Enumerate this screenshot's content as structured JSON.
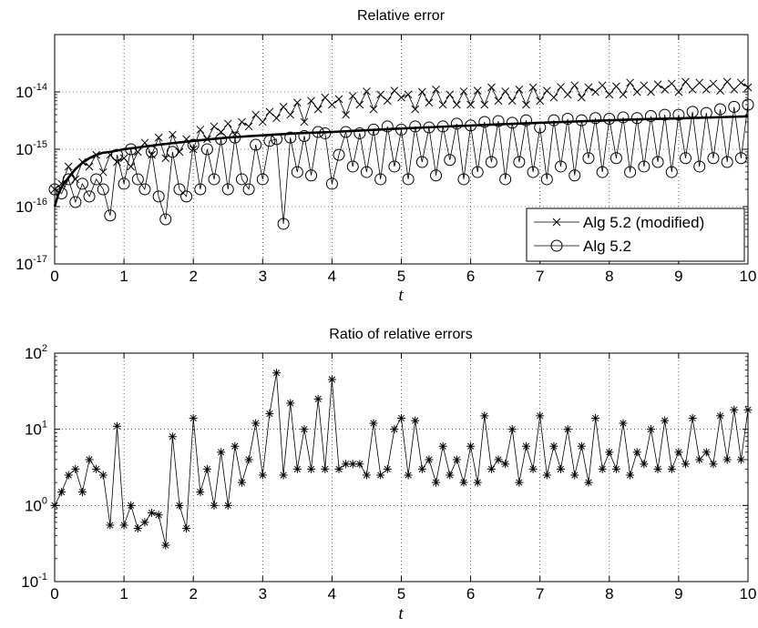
{
  "chart_data": [
    {
      "type": "line",
      "title": "Relative error",
      "xlabel": "t",
      "ylabel": "",
      "xlim": [
        0,
        10
      ],
      "ylim": [
        1e-17,
        1e-13
      ],
      "yscale": "log",
      "grid": true,
      "legend_position": "bottom-right",
      "x_ticks": [
        "0",
        "1",
        "2",
        "3",
        "4",
        "5",
        "6",
        "7",
        "8",
        "9",
        "10"
      ],
      "y_tick_exponents": [
        "-17",
        "-16",
        "-15",
        "-14"
      ],
      "y_tick_base": "10",
      "series": [
        {
          "name": "Alg 5.2 (modified)",
          "marker": "x",
          "x": [
            0.0,
            0.1,
            0.2,
            0.3,
            0.4,
            0.5,
            0.6,
            0.7,
            0.8,
            0.9,
            1.0,
            1.1,
            1.2,
            1.3,
            1.4,
            1.5,
            1.6,
            1.7,
            1.8,
            1.9,
            2.0,
            2.1,
            2.2,
            2.3,
            2.4,
            2.5,
            2.6,
            2.7,
            2.8,
            2.9,
            3.0,
            3.1,
            3.2,
            3.3,
            3.4,
            3.5,
            3.6,
            3.7,
            3.8,
            3.9,
            4.0,
            4.1,
            4.2,
            4.3,
            4.4,
            4.5,
            4.6,
            4.7,
            4.8,
            4.9,
            5.0,
            5.1,
            5.2,
            5.3,
            5.4,
            5.5,
            5.6,
            5.7,
            5.8,
            5.9,
            6.0,
            6.1,
            6.2,
            6.3,
            6.4,
            6.5,
            6.6,
            6.7,
            6.8,
            6.9,
            7.0,
            7.1,
            7.2,
            7.3,
            7.4,
            7.5,
            7.6,
            7.7,
            7.8,
            7.9,
            8.0,
            8.1,
            8.2,
            8.3,
            8.4,
            8.5,
            8.6,
            8.7,
            8.8,
            8.9,
            9.0,
            9.1,
            9.2,
            9.3,
            9.4,
            9.5,
            9.6,
            9.7,
            9.8,
            9.9,
            10.0
          ],
          "y": [
            2e-16,
            2.5e-16,
            5e-16,
            3e-16,
            6e-16,
            5e-16,
            8e-16,
            4e-16,
            8e-16,
            6e-16,
            7e-16,
            5e-16,
            9e-16,
            1.3e-15,
            8e-16,
            1.6e-15,
            7e-16,
            1.8e-15,
            9e-16,
            1.5e-15,
            1e-15,
            2.2e-15,
            1.5e-15,
            2.5e-15,
            2e-15,
            2.8e-15,
            1.8e-15,
            3e-15,
            2.5e-15,
            4e-15,
            3e-15,
            4.5e-15,
            3.5e-15,
            5.5e-15,
            4e-15,
            6.5e-15,
            3e-15,
            7e-15,
            5e-15,
            8e-15,
            6e-15,
            7.5e-15,
            4e-15,
            8.5e-15,
            6e-15,
            1.02e-14,
            5e-15,
            9e-15,
            7e-15,
            1.05e-14,
            8e-15,
            9e-15,
            5e-15,
            1e-14,
            6.5e-15,
            1.1e-14,
            6e-15,
            9e-15,
            6e-15,
            1.02e-14,
            6e-15,
            1.05e-14,
            6e-15,
            1.2e-14,
            7e-15,
            1.02e-14,
            7e-15,
            1.1e-14,
            6e-15,
            1.2e-14,
            7e-15,
            1.05e-14,
            8e-15,
            1.22e-14,
            9e-15,
            1.3e-14,
            8e-15,
            1.2e-14,
            1e-14,
            1.3e-14,
            9e-15,
            1.25e-14,
            9e-15,
            1.45e-14,
            1e-14,
            1.3e-14,
            1e-14,
            1.35e-14,
            1.1e-14,
            1.4e-14,
            1e-14,
            1.5e-14,
            1.1e-14,
            1.45e-14,
            1.1e-14,
            1.4e-14,
            1.05e-14,
            1.5e-14,
            1.1e-14,
            1.45e-14,
            1.2e-14
          ]
        },
        {
          "name": "Alg 5.2",
          "marker": "o",
          "x": [
            0.0,
            0.1,
            0.2,
            0.3,
            0.4,
            0.5,
            0.6,
            0.7,
            0.8,
            0.9,
            1.0,
            1.1,
            1.2,
            1.3,
            1.4,
            1.5,
            1.6,
            1.7,
            1.8,
            1.9,
            2.0,
            2.1,
            2.2,
            2.3,
            2.4,
            2.5,
            2.6,
            2.7,
            2.8,
            2.9,
            3.0,
            3.1,
            3.2,
            3.3,
            3.4,
            3.5,
            3.6,
            3.7,
            3.8,
            3.9,
            4.0,
            4.1,
            4.2,
            4.3,
            4.4,
            4.5,
            4.6,
            4.7,
            4.8,
            4.9,
            5.0,
            5.1,
            5.2,
            5.3,
            5.4,
            5.5,
            5.6,
            5.7,
            5.8,
            5.9,
            6.0,
            6.1,
            6.2,
            6.3,
            6.4,
            6.5,
            6.6,
            6.7,
            6.8,
            6.9,
            7.0,
            7.1,
            7.2,
            7.3,
            7.4,
            7.5,
            7.6,
            7.7,
            7.8,
            7.9,
            8.0,
            8.1,
            8.2,
            8.3,
            8.4,
            8.5,
            8.6,
            8.7,
            8.8,
            8.9,
            9.0,
            9.1,
            9.2,
            9.3,
            9.4,
            9.5,
            9.6,
            9.7,
            9.8,
            9.9,
            10.0
          ],
          "y": [
            2e-16,
            1.7e-16,
            3e-16,
            1.2e-16,
            2.5e-16,
            1.5e-16,
            3e-16,
            2e-16,
            7e-17,
            8e-16,
            2.5e-16,
            1e-15,
            3e-16,
            2e-16,
            9e-16,
            1.5e-16,
            6e-17,
            9e-16,
            2e-16,
            1.5e-16,
            1.2e-15,
            2e-16,
            1e-15,
            3e-16,
            1.5e-15,
            2e-16,
            1.6e-15,
            3e-16,
            2e-16,
            1.2e-15,
            3e-16,
            1.4e-15,
            1.5e-15,
            5e-17,
            1.6e-15,
            4e-16,
            1.7e-15,
            3.5e-16,
            2e-15,
            1.9e-15,
            2.5e-16,
            8e-16,
            2e-15,
            5e-16,
            1.9e-15,
            4e-16,
            2.2e-15,
            3e-16,
            2.5e-15,
            5e-16,
            2.2e-15,
            3e-16,
            2.5e-15,
            6e-16,
            2.4e-15,
            3.5e-16,
            2.5e-15,
            6.5e-16,
            2.8e-15,
            3e-16,
            2.6e-15,
            4e-16,
            3e-15,
            6e-16,
            3.1e-15,
            3e-16,
            2.9e-15,
            6e-16,
            3.2e-15,
            4e-16,
            2.4e-15,
            3e-16,
            3.2e-15,
            5e-16,
            3.4e-15,
            3.5e-16,
            3.2e-15,
            7e-16,
            3.5e-15,
            4e-16,
            3.4e-15,
            7e-16,
            3.6e-15,
            4e-16,
            3.5e-15,
            5e-16,
            3.8e-15,
            6e-16,
            4e-15,
            4e-16,
            4e-15,
            7e-16,
            4.5e-15,
            5e-16,
            4.3e-15,
            7e-16,
            5e-15,
            6e-16,
            5.5e-15,
            7e-16,
            6e-15
          ]
        },
        {
          "name": "",
          "marker": "none",
          "style": "thick",
          "x": [
            0.0,
            0.05,
            0.1,
            0.2,
            0.3,
            0.4,
            0.5,
            0.6,
            0.7,
            0.8,
            1.0,
            1.5,
            2.0,
            2.5,
            3.0,
            3.5,
            4.0,
            4.5,
            5.0,
            5.5,
            6.0,
            6.5,
            7.0,
            7.5,
            8.0,
            8.5,
            9.0,
            9.5,
            10.0
          ],
          "y": [
            1e-16,
            1.6e-16,
            2.2e-16,
            3.2e-16,
            4.5e-16,
            5.8e-16,
            7e-16,
            8e-16,
            8.7e-16,
            9e-16,
            1e-15,
            1.2e-15,
            1.4e-15,
            1.6e-15,
            1.75e-15,
            1.9e-15,
            2e-15,
            2.15e-15,
            2.3e-15,
            2.45e-15,
            2.6e-15,
            2.75e-15,
            2.9e-15,
            3.05e-15,
            3.2e-15,
            3.35e-15,
            3.45e-15,
            3.6e-15,
            3.75e-15
          ]
        }
      ]
    },
    {
      "type": "line",
      "title": "Ratio of relative errors",
      "xlabel": "t",
      "ylabel": "",
      "xlim": [
        0,
        10
      ],
      "ylim": [
        0.1,
        100
      ],
      "yscale": "log",
      "grid": true,
      "x_ticks": [
        "0",
        "1",
        "2",
        "3",
        "4",
        "5",
        "6",
        "7",
        "8",
        "9",
        "10"
      ],
      "y_tick_exponents": [
        "-1",
        "0",
        "1",
        "2"
      ],
      "y_tick_base": "10",
      "series": [
        {
          "name": "",
          "marker": "*",
          "x": [
            0.0,
            0.1,
            0.2,
            0.3,
            0.4,
            0.5,
            0.6,
            0.7,
            0.8,
            0.9,
            1.0,
            1.1,
            1.2,
            1.3,
            1.4,
            1.5,
            1.6,
            1.7,
            1.8,
            1.9,
            2.0,
            2.1,
            2.2,
            2.3,
            2.4,
            2.5,
            2.6,
            2.7,
            2.8,
            2.9,
            3.0,
            3.1,
            3.2,
            3.3,
            3.4,
            3.5,
            3.6,
            3.7,
            3.8,
            3.9,
            4.0,
            4.1,
            4.2,
            4.3,
            4.4,
            4.5,
            4.6,
            4.7,
            4.8,
            4.9,
            5.0,
            5.1,
            5.2,
            5.3,
            5.4,
            5.5,
            5.6,
            5.7,
            5.8,
            5.9,
            6.0,
            6.1,
            6.2,
            6.3,
            6.4,
            6.5,
            6.6,
            6.7,
            6.8,
            6.9,
            7.0,
            7.1,
            7.2,
            7.3,
            7.4,
            7.5,
            7.6,
            7.7,
            7.8,
            7.9,
            8.0,
            8.1,
            8.2,
            8.3,
            8.4,
            8.5,
            8.6,
            8.7,
            8.8,
            8.9,
            9.0,
            9.1,
            9.2,
            9.3,
            9.4,
            9.5,
            9.6,
            9.7,
            9.8,
            9.9,
            10.0
          ],
          "y": [
            1.0,
            1.5,
            2.5,
            3.0,
            1.5,
            4.0,
            3.0,
            2.5,
            0.55,
            11.0,
            0.55,
            1.0,
            0.5,
            0.6,
            0.8,
            0.75,
            0.3,
            8.0,
            1.0,
            0.5,
            14.0,
            1.5,
            3.0,
            1.0,
            5.0,
            1.0,
            6.0,
            2.0,
            4.0,
            12.0,
            2.5,
            16.0,
            55.0,
            2.5,
            22.0,
            3.0,
            10.0,
            3.0,
            25.0,
            3.0,
            45.0,
            3.0,
            3.5,
            3.5,
            3.5,
            2.5,
            12.0,
            2.5,
            3.0,
            10.0,
            14.0,
            2.5,
            13.0,
            3.0,
            4.0,
            2.0,
            6.0,
            2.5,
            4.0,
            2.0,
            6.0,
            2.0,
            15.0,
            3.0,
            4.0,
            3.5,
            10.0,
            2.0,
            6.0,
            3.0,
            15.0,
            2.5,
            6.0,
            3.0,
            10.0,
            2.5,
            6.0,
            2.0,
            14.0,
            3.0,
            5.0,
            3.0,
            12.0,
            2.5,
            5.0,
            3.5,
            10.0,
            3.0,
            13.0,
            3.0,
            5.0,
            3.5,
            14.0,
            4.0,
            5.0,
            3.5,
            15.0,
            4.0,
            18.0,
            4.0,
            18.0
          ]
        }
      ]
    }
  ]
}
